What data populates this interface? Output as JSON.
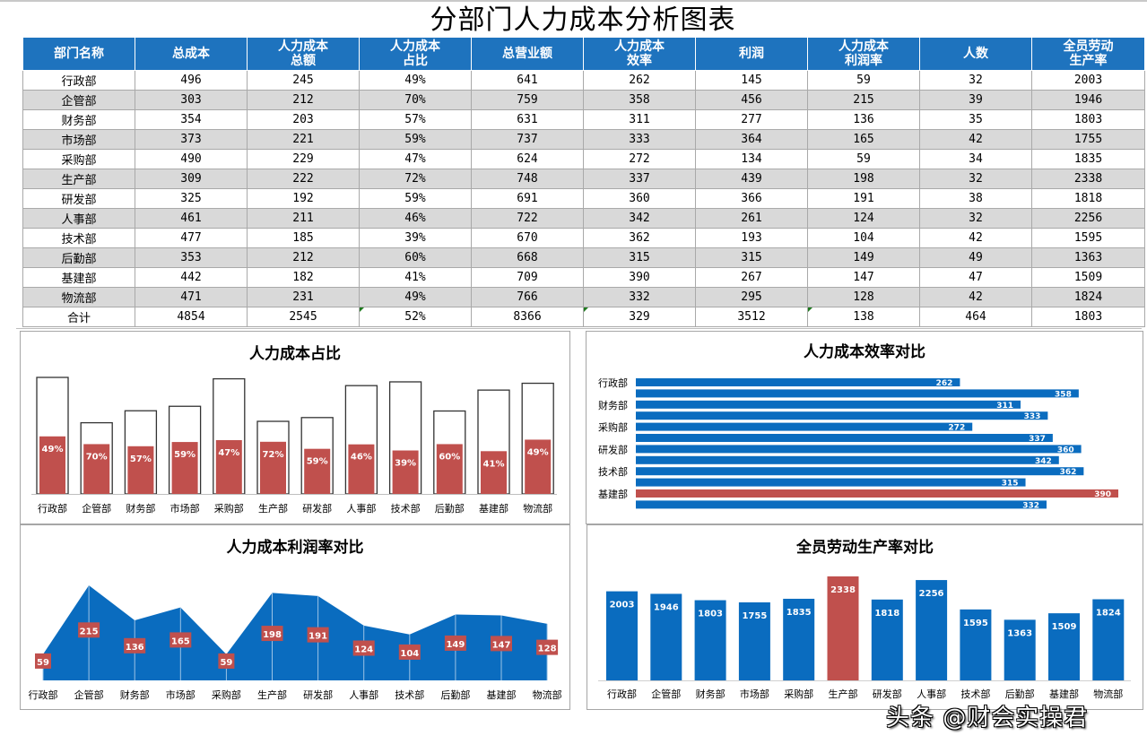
{
  "title": "分部门人力成本分析图表",
  "table": {
    "headers": [
      [
        "部门名称"
      ],
      [
        "总成本"
      ],
      [
        "人力成本",
        "总额"
      ],
      [
        "人力成本",
        "占比"
      ],
      [
        "总营业额"
      ],
      [
        "人力成本",
        "效率"
      ],
      [
        "利润"
      ],
      [
        "人力成本",
        "利润率"
      ],
      [
        "人数"
      ],
      [
        "全员劳动",
        "生产率"
      ]
    ],
    "rows": [
      [
        "行政部",
        "496",
        "245",
        "49%",
        "641",
        "262",
        "145",
        "59",
        "32",
        "2003"
      ],
      [
        "企管部",
        "303",
        "212",
        "70%",
        "759",
        "358",
        "456",
        "215",
        "39",
        "1946"
      ],
      [
        "财务部",
        "354",
        "203",
        "57%",
        "631",
        "311",
        "277",
        "136",
        "35",
        "1803"
      ],
      [
        "市场部",
        "373",
        "221",
        "59%",
        "737",
        "333",
        "364",
        "165",
        "42",
        "1755"
      ],
      [
        "采购部",
        "490",
        "229",
        "47%",
        "624",
        "272",
        "134",
        "59",
        "34",
        "1835"
      ],
      [
        "生产部",
        "309",
        "222",
        "72%",
        "748",
        "337",
        "439",
        "198",
        "32",
        "2338"
      ],
      [
        "研发部",
        "325",
        "192",
        "59%",
        "691",
        "360",
        "366",
        "191",
        "38",
        "1818"
      ],
      [
        "人事部",
        "461",
        "211",
        "46%",
        "722",
        "342",
        "261",
        "124",
        "32",
        "2256"
      ],
      [
        "技术部",
        "477",
        "185",
        "39%",
        "670",
        "362",
        "193",
        "104",
        "42",
        "1595"
      ],
      [
        "后勤部",
        "353",
        "212",
        "60%",
        "668",
        "315",
        "315",
        "149",
        "49",
        "1363"
      ],
      [
        "基建部",
        "442",
        "182",
        "41%",
        "709",
        "390",
        "267",
        "147",
        "47",
        "1509"
      ],
      [
        "物流部",
        "471",
        "231",
        "49%",
        "766",
        "332",
        "295",
        "128",
        "42",
        "1824"
      ]
    ],
    "total": [
      "合计",
      "4854",
      "2545",
      "52%",
      "8366",
      "329",
      "3512",
      "138",
      "464",
      "1803"
    ]
  },
  "colors": {
    "header_blue": "#1e73be",
    "bar_blue": "#0a6cbf",
    "accent_red": "#c0504d",
    "row_alt": "#d9d9d9"
  },
  "chart_data": [
    {
      "id": "ratio",
      "type": "bar",
      "title": "人力成本占比",
      "categories": [
        "行政部",
        "企管部",
        "财务部",
        "市场部",
        "采购部",
        "生产部",
        "研发部",
        "人事部",
        "技术部",
        "后勤部",
        "基建部",
        "物流部"
      ],
      "series": [
        {
          "name": "总成本",
          "values": [
            496,
            303,
            354,
            373,
            490,
            309,
            325,
            461,
            477,
            353,
            442,
            471
          ],
          "style": "outline"
        },
        {
          "name": "人力成本总额",
          "values": [
            245,
            212,
            203,
            221,
            229,
            222,
            192,
            211,
            185,
            212,
            182,
            231
          ],
          "style": "filled-red"
        }
      ],
      "data_labels": [
        "49%",
        "70%",
        "57%",
        "59%",
        "47%",
        "72%",
        "59%",
        "46%",
        "39%",
        "60%",
        "41%",
        "49%"
      ],
      "legend": false,
      "grid": false
    },
    {
      "id": "efficiency",
      "type": "bar",
      "orientation": "horizontal",
      "title": "人力成本效率对比",
      "categories": [
        "行政部",
        "企管部",
        "财务部",
        "市场部",
        "采购部",
        "生产部",
        "研发部",
        "人事部",
        "技术部",
        "后勤部",
        "基建部",
        "物流部"
      ],
      "axis_labels_shown": [
        "行政部",
        "财务部",
        "采购部",
        "研发部",
        "技术部",
        "基建部"
      ],
      "values": [
        262,
        358,
        311,
        333,
        272,
        337,
        360,
        342,
        362,
        315,
        390,
        332
      ],
      "highlight": "基建部",
      "legend": false,
      "grid": false
    },
    {
      "id": "profit_rate",
      "type": "area",
      "title": "人力成本利润率对比",
      "categories": [
        "行政部",
        "企管部",
        "财务部",
        "市场部",
        "采购部",
        "生产部",
        "研发部",
        "人事部",
        "技术部",
        "后勤部",
        "基建部",
        "物流部"
      ],
      "values": [
        59,
        215,
        136,
        165,
        59,
        198,
        191,
        124,
        104,
        149,
        147,
        128
      ],
      "legend": false,
      "grid": false
    },
    {
      "id": "productivity",
      "type": "bar",
      "title": "全员劳动生产率对比",
      "categories": [
        "行政部",
        "企管部",
        "财务部",
        "市场部",
        "采购部",
        "生产部",
        "研发部",
        "人事部",
        "技术部",
        "后勤部",
        "基建部",
        "物流部"
      ],
      "values": [
        2003,
        1946,
        1803,
        1755,
        1835,
        2338,
        1818,
        2256,
        1595,
        1363,
        1509,
        1824
      ],
      "highlight": "生产部",
      "legend": false,
      "grid": false
    }
  ],
  "watermark": "头条 @财会实操君"
}
